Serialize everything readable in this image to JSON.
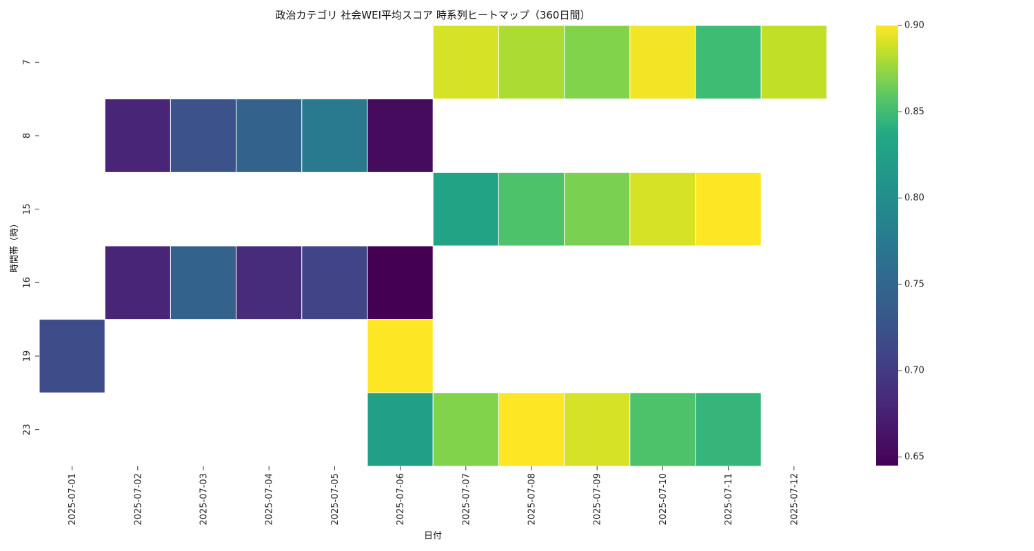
{
  "chart_data": {
    "type": "heatmap",
    "title": "政治カテゴリ 社会WEI平均スコア 時系列ヒートマップ（360日間）",
    "xlabel": "日付",
    "ylabel": "時間帯（時）",
    "x_categories": [
      "2025-07-01",
      "2025-07-02",
      "2025-07-03",
      "2025-07-04",
      "2025-07-05",
      "2025-07-06",
      "2025-07-07",
      "2025-07-08",
      "2025-07-09",
      "2025-07-10",
      "2025-07-11",
      "2025-07-12"
    ],
    "y_categories": [
      "7",
      "8",
      "15",
      "16",
      "19",
      "23"
    ],
    "values": [
      [
        null,
        null,
        null,
        null,
        null,
        null,
        0.89,
        0.88,
        0.87,
        0.897,
        0.85,
        0.885
      ],
      [
        null,
        0.678,
        0.725,
        0.745,
        0.775,
        0.655,
        null,
        null,
        null,
        null,
        null,
        null
      ],
      [
        null,
        null,
        null,
        null,
        null,
        null,
        0.83,
        0.855,
        0.868,
        0.89,
        0.9,
        null
      ],
      [
        null,
        0.678,
        0.745,
        0.685,
        0.71,
        0.645,
        null,
        null,
        null,
        null,
        null,
        null
      ],
      [
        0.718,
        null,
        null,
        null,
        null,
        0.9,
        null,
        null,
        null,
        null,
        null,
        null
      ],
      [
        null,
        null,
        null,
        null,
        null,
        0.825,
        0.87,
        0.9,
        0.89,
        0.855,
        0.845,
        null
      ]
    ],
    "colorbar": {
      "colormap": "viridis",
      "vmin": 0.645,
      "vmax": 0.9,
      "ticks": [
        "0.65",
        "0.70",
        "0.75",
        "0.80",
        "0.85",
        "0.90"
      ]
    }
  }
}
